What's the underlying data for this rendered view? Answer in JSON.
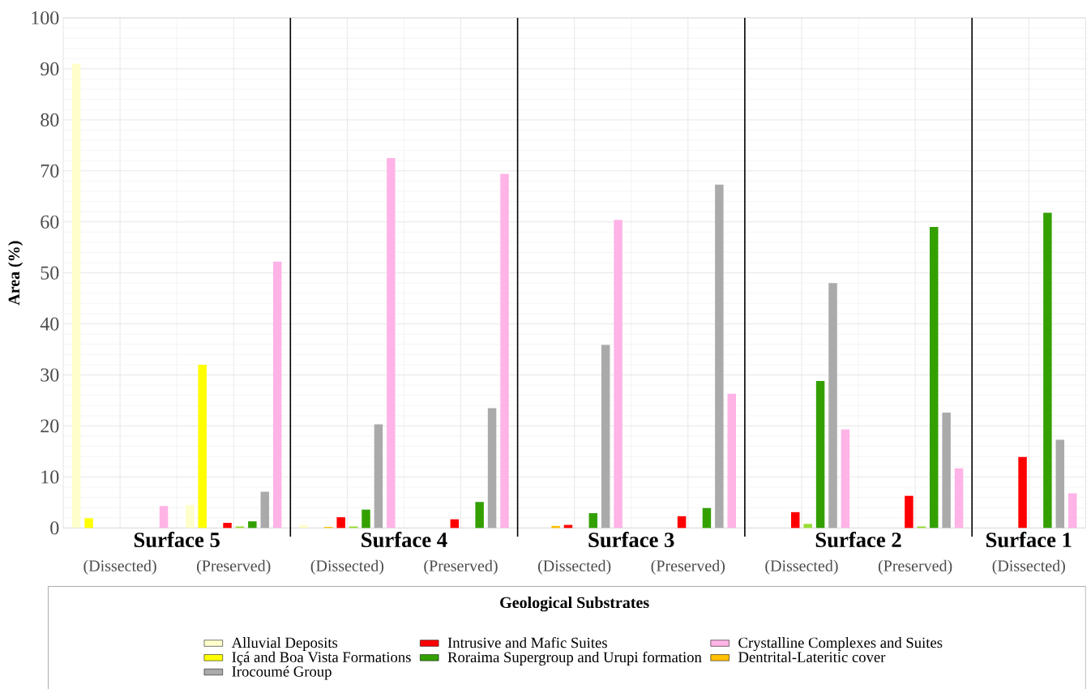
{
  "chart_data": {
    "type": "bar",
    "ylabel": "Area (%)",
    "legend_title": "Geological Substrates",
    "categories": [
      "(Dissected)",
      "(Preserved)",
      "(Dissected)",
      "(Preserved)",
      "(Dissected)",
      "(Preserved)",
      "(Dissected)",
      "(Preserved)",
      "(Dissected)"
    ],
    "annotations": [
      "Surface 5",
      "Surface 4",
      "Surface 3",
      "Surface 2",
      "Surface 1"
    ],
    "series": [
      {
        "name": "Alluvial Deposits",
        "color": "#ffffcc",
        "values": [
          91,
          4.5,
          0.6,
          null,
          null,
          null,
          null,
          null,
          null
        ]
      },
      {
        "name": "Içá and Boa Vista Formations",
        "color": "#ffff00",
        "values": [
          1.9,
          32,
          null,
          null,
          null,
          null,
          null,
          null,
          null
        ]
      },
      {
        "name": "Dentrital-Lateritic cover",
        "color": "#ffc000",
        "values": [
          null,
          null,
          0.2,
          null,
          0.4,
          null,
          null,
          null,
          null
        ]
      },
      {
        "name": "Intrusive and Mafic Suites",
        "color": "#ff0000",
        "values": [
          null,
          1.0,
          2.1,
          1.7,
          0.6,
          2.3,
          3.1,
          6.3,
          13.9
        ]
      },
      {
        "color": "#99dd33",
        "values": [
          null,
          0.3,
          0.3,
          null,
          null,
          null,
          0.8,
          0.3,
          null
        ]
      },
      {
        "name": "Roraima Supergroup and Urupi formation",
        "color": "#33a000",
        "values": [
          null,
          1.3,
          3.6,
          5.1,
          2.9,
          3.9,
          28.8,
          59.0,
          61.8
        ]
      },
      {
        "name": "Irocoumé Group",
        "color": "#aaaaaa",
        "values": [
          null,
          7.1,
          20.3,
          23.5,
          35.9,
          67.3,
          48.0,
          22.6,
          17.3
        ]
      },
      {
        "name": "Crystalline Complexes and Suites",
        "color": "#ffb3e6",
        "values": [
          4.3,
          52.2,
          72.5,
          69.4,
          60.4,
          26.3,
          19.3,
          11.7,
          6.8
        ]
      }
    ],
    "ylim": [
      0,
      100
    ],
    "yticks": [
      0,
      10,
      20,
      30,
      40,
      50,
      60,
      70,
      80,
      90,
      100
    ],
    "grid": true,
    "legend": "bottom"
  }
}
